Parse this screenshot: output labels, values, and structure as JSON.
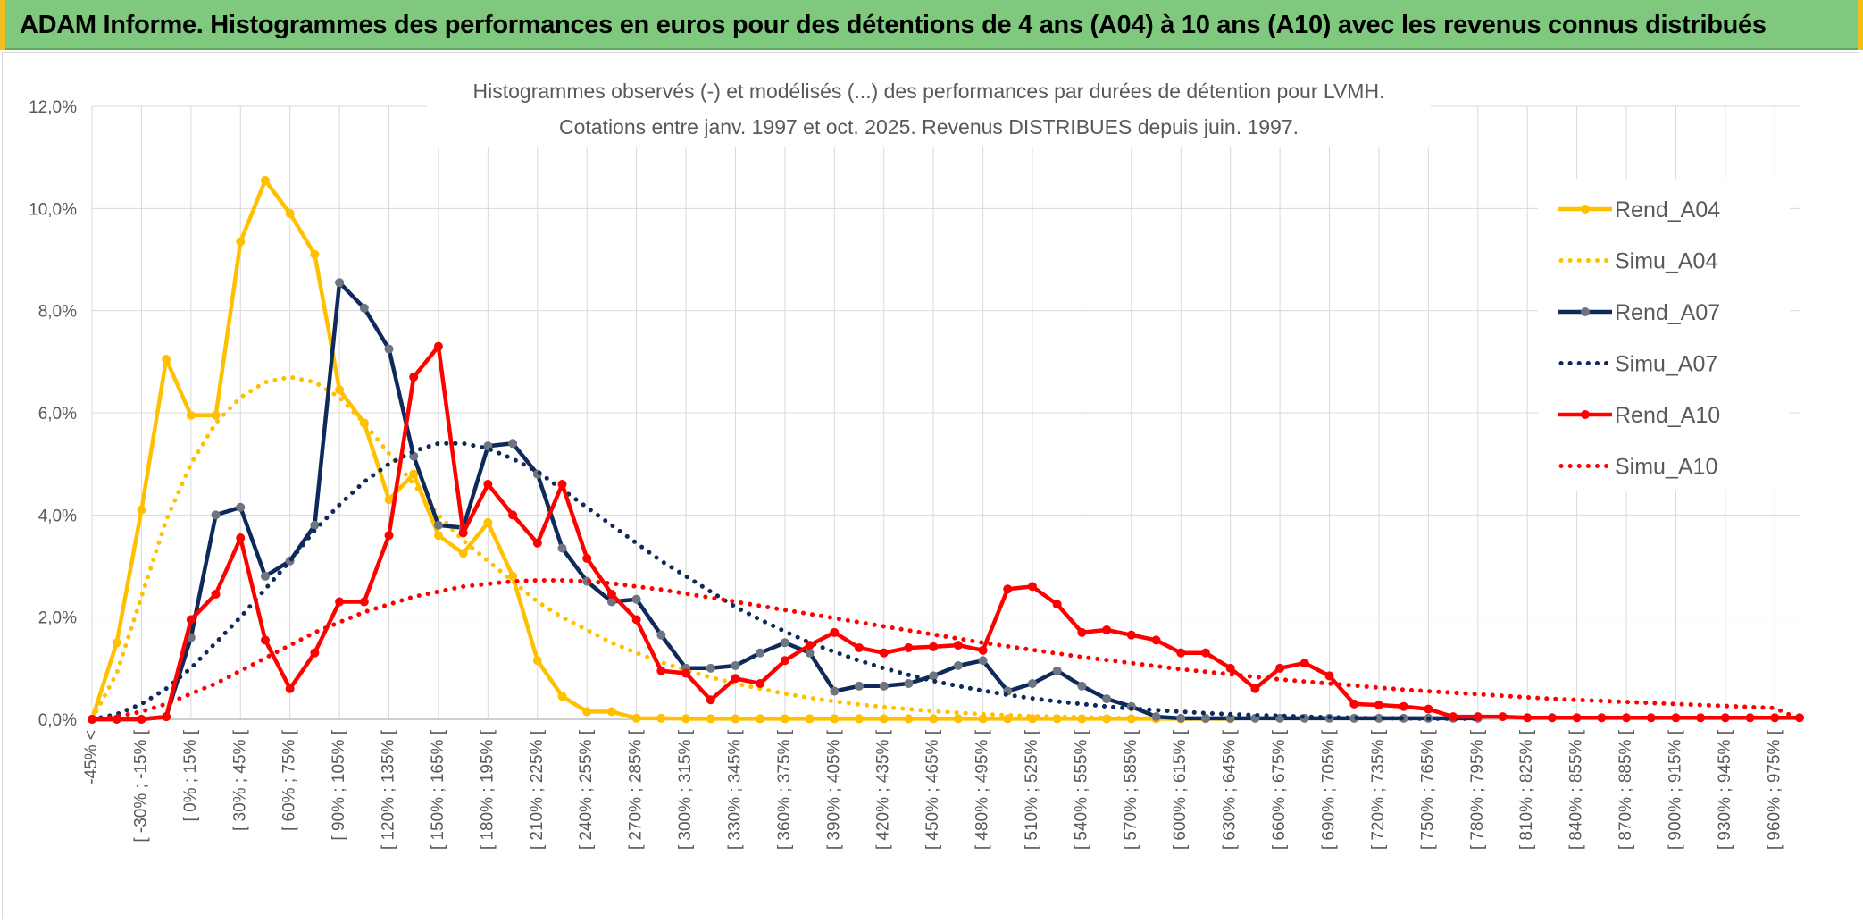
{
  "banner": {
    "title": "ADAM Informe. Histogrammes des performances en euros pour des détentions de 4 ans (A04) à 10 ans (A10) avec les revenus connus distribués"
  },
  "colors": {
    "banner_bg": "#7fc97f",
    "A04": "#ffc000",
    "A07": "#0e2a5a",
    "A07_marker": "#6e7580",
    "A10": "#ff0000",
    "grid": "#d9d9d9",
    "axis_text": "#595959"
  },
  "chart_data": {
    "type": "line",
    "title_line1": "Histogrammes observés (-) et modélisés (...) des performances par durées de détention pour LVMH.",
    "title_line2": "Cotations entre janv. 1997 et oct. 2025. Revenus DISTRIBUES depuis juin. 1997.",
    "xlabel": "",
    "ylabel": "",
    "ylim": [
      0,
      12
    ],
    "y_ticks": [
      "0,0%",
      "2,0%",
      "4,0%",
      "6,0%",
      "8,0%",
      "10,0%",
      "12,0%"
    ],
    "x_labels": [
      "-45% <",
      "[ -30% ; -15% [",
      "[ 0% ; 15% [",
      "[ 30% ; 45% [",
      "[ 60% ; 75% [",
      "[ 90% ; 105% [",
      "[ 120% ; 135% [",
      "[ 150% ; 165% [",
      "[ 180% ; 195% [",
      "[ 210% ; 225% [",
      "[ 240% ; 255% [",
      "[ 270% ; 285% [",
      "[ 300% ; 315% [",
      "[ 330% ; 345% [",
      "[ 360% ; 375% [",
      "[ 390% ; 405% [",
      "[ 420% ; 435% [",
      "[ 450% ; 465% [",
      "[ 480% ; 495% [",
      "[ 510% ; 525% [",
      "[ 540% ; 555% [",
      "[ 570% ; 585% [",
      "[ 600% ; 615% [",
      "[ 630% ; 645% [",
      "[ 660% ; 675% [",
      "[ 690% ; 705% [",
      "[ 720% ; 735% [",
      "[ 750% ; 765% [",
      "[ 780% ; 795% [",
      "[ 810% ; 825% [",
      "[ 840% ; 855% [",
      "[ 870% ; 885% [",
      "[ 900% ; 915% [",
      "[ 930% ; 945% [",
      "[ 960% ; 975% ["
    ],
    "n_points": 70,
    "series": [
      {
        "name": "Rend_A04",
        "style": "solid",
        "color": "#ffc000",
        "values": [
          0,
          1.5,
          4.1,
          7.05,
          5.95,
          5.95,
          9.35,
          10.55,
          9.9,
          9.1,
          6.45,
          5.8,
          4.3,
          4.8,
          3.6,
          3.25,
          3.85,
          2.8,
          1.15,
          0.45,
          0.15,
          0.15,
          0.02,
          0.02,
          0.01,
          0.01,
          0.01,
          0.01,
          0.01,
          0.01,
          0.01,
          0.01,
          0.01,
          0.01,
          0.01,
          0.01,
          0.01,
          0.01,
          0.01,
          0.01,
          0.01,
          0.01,
          0.01,
          0.01,
          0.01,
          0.01,
          0.01
        ]
      },
      {
        "name": "Simu_A04",
        "style": "dotted",
        "color": "#ffc000",
        "values": [
          0,
          0.9,
          2.4,
          3.9,
          5.0,
          5.8,
          6.3,
          6.6,
          6.7,
          6.6,
          6.3,
          5.8,
          5.2,
          4.6,
          4.0,
          3.5,
          3.1,
          2.7,
          2.3,
          2.0,
          1.75,
          1.5,
          1.3,
          1.12,
          0.96,
          0.82,
          0.7,
          0.6,
          0.5,
          0.42,
          0.35,
          0.29,
          0.24,
          0.2,
          0.16,
          0.13,
          0.1,
          0.08,
          0.06,
          0.05,
          0.04,
          0.03,
          0.02,
          0.02,
          0.01,
          0.01,
          0.01
        ]
      },
      {
        "name": "Rend_A07",
        "style": "solid",
        "color": "#0e2a5a",
        "values": [
          0,
          0,
          0,
          0.05,
          1.6,
          4.0,
          4.15,
          2.8,
          3.1,
          3.8,
          8.55,
          8.05,
          7.25,
          5.15,
          3.8,
          3.75,
          5.35,
          5.4,
          4.8,
          3.35,
          2.7,
          2.3,
          2.35,
          1.65,
          1.0,
          1.0,
          1.05,
          1.3,
          1.5,
          1.3,
          0.55,
          0.65,
          0.65,
          0.7,
          0.85,
          1.05,
          1.15,
          0.55,
          0.7,
          0.95,
          0.65,
          0.4,
          0.25,
          0.05,
          0.02,
          0.02,
          0.02,
          0.02,
          0.02,
          0.02,
          0.02,
          0.02,
          0.02,
          0.02,
          0.02,
          0.02,
          0.02
        ]
      },
      {
        "name": "Simu_A07",
        "style": "dotted",
        "color": "#0e2a5a",
        "values": [
          0,
          0.1,
          0.3,
          0.6,
          1.0,
          1.5,
          2.0,
          2.55,
          3.1,
          3.7,
          4.2,
          4.65,
          5.0,
          5.25,
          5.4,
          5.4,
          5.3,
          5.1,
          4.85,
          4.5,
          4.15,
          3.8,
          3.45,
          3.1,
          2.8,
          2.5,
          2.2,
          1.95,
          1.72,
          1.5,
          1.32,
          1.15,
          1.0,
          0.87,
          0.75,
          0.65,
          0.56,
          0.48,
          0.41,
          0.35,
          0.3,
          0.25,
          0.21,
          0.18,
          0.15,
          0.12,
          0.1,
          0.08,
          0.07,
          0.05,
          0.04,
          0.03,
          0.02,
          0.02,
          0.01,
          0.01,
          0.01
        ]
      },
      {
        "name": "Rend_A10",
        "style": "solid",
        "color": "#ff0000",
        "values": [
          0,
          0,
          0,
          0.05,
          1.95,
          2.45,
          3.55,
          1.55,
          0.6,
          1.3,
          2.3,
          2.3,
          3.6,
          6.7,
          7.3,
          3.65,
          4.6,
          4.0,
          3.45,
          4.6,
          3.15,
          2.45,
          1.95,
          0.95,
          0.9,
          0.38,
          0.8,
          0.7,
          1.15,
          1.45,
          1.7,
          1.4,
          1.3,
          1.4,
          1.42,
          1.45,
          1.35,
          2.55,
          2.6,
          2.25,
          1.7,
          1.75,
          1.65,
          1.55,
          1.3,
          1.3,
          1.0,
          0.6,
          1.0,
          1.1,
          0.85,
          0.3,
          0.28,
          0.25,
          0.2,
          0.05,
          0.05,
          0.05,
          0.03,
          0.03,
          0.03,
          0.03,
          0.03,
          0.03,
          0.03,
          0.03,
          0.03,
          0.03,
          0.03,
          0.03
        ]
      },
      {
        "name": "Simu_A10",
        "style": "dotted",
        "color": "#ff0000",
        "values": [
          0,
          0.05,
          0.15,
          0.3,
          0.5,
          0.7,
          0.95,
          1.2,
          1.45,
          1.7,
          1.9,
          2.1,
          2.25,
          2.4,
          2.5,
          2.6,
          2.65,
          2.7,
          2.72,
          2.72,
          2.7,
          2.66,
          2.6,
          2.54,
          2.46,
          2.38,
          2.3,
          2.22,
          2.14,
          2.06,
          1.98,
          1.9,
          1.82,
          1.74,
          1.66,
          1.58,
          1.5,
          1.43,
          1.36,
          1.29,
          1.22,
          1.16,
          1.1,
          1.04,
          0.98,
          0.93,
          0.88,
          0.83,
          0.78,
          0.74,
          0.7,
          0.66,
          0.62,
          0.58,
          0.55,
          0.52,
          0.49,
          0.46,
          0.43,
          0.4,
          0.38,
          0.36,
          0.34,
          0.32,
          0.3,
          0.28,
          0.26,
          0.24,
          0.22,
          0.0
        ]
      }
    ],
    "legend": [
      "Rend_A04",
      "Simu_A04",
      "Rend_A07",
      "Simu_A07",
      "Rend_A10",
      "Simu_A10"
    ],
    "legend_position": "right"
  }
}
